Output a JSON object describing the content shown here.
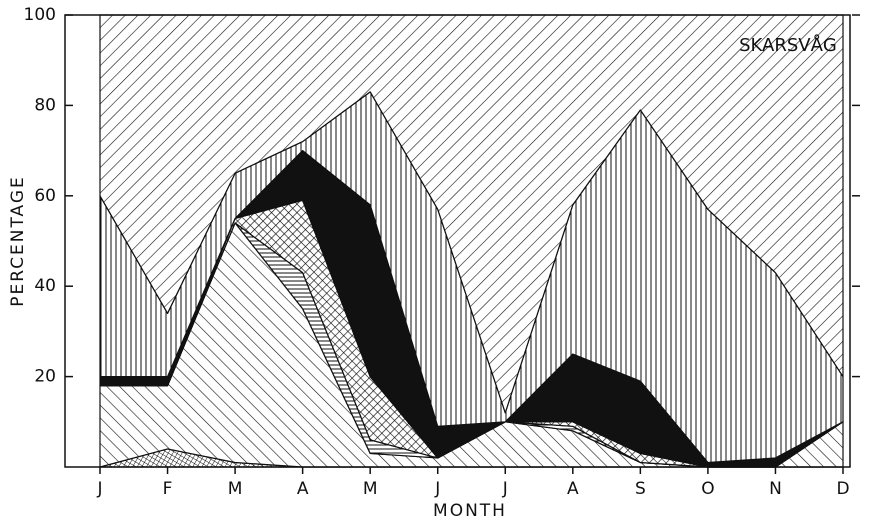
{
  "chart_data": {
    "type": "stacked-area",
    "annotation": "SKARSVÅG",
    "x_label": "MONTH",
    "y_label": "PERCENTAGE",
    "categories": [
      "J",
      "F",
      "M",
      "A",
      "M",
      "J",
      "J",
      "A",
      "S",
      "O",
      "N",
      "D"
    ],
    "ylim": [
      0,
      100
    ],
    "yticks": [
      20,
      40,
      60,
      80,
      100
    ],
    "color": "#111111",
    "series": [
      {
        "pattern": "crosshatch-fine",
        "values": [
          0,
          4,
          1,
          0,
          0,
          0,
          0,
          0,
          0,
          0,
          0,
          0
        ]
      },
      {
        "pattern": "backslash",
        "values": [
          18,
          14,
          53,
          35,
          3,
          2,
          10,
          8,
          1,
          0,
          0,
          10
        ]
      },
      {
        "pattern": "horizontal",
        "values": [
          0,
          0,
          0,
          8,
          3,
          0,
          0,
          1,
          0,
          0,
          0,
          0
        ]
      },
      {
        "pattern": "crosshatch",
        "values": [
          0,
          0,
          1,
          16,
          14,
          0,
          0,
          1,
          2,
          0,
          0,
          0
        ]
      },
      {
        "pattern": "solid",
        "values": [
          2,
          2,
          0,
          11,
          38,
          7,
          0,
          15,
          16,
          1,
          2,
          0
        ]
      },
      {
        "pattern": "vertical",
        "values": [
          40,
          14,
          10,
          2,
          25,
          48,
          2,
          33,
          60,
          56,
          41,
          10
        ]
      },
      {
        "pattern": "slash",
        "values": [
          40,
          66,
          35,
          28,
          17,
          43,
          88,
          42,
          21,
          43,
          57,
          80
        ]
      }
    ]
  }
}
